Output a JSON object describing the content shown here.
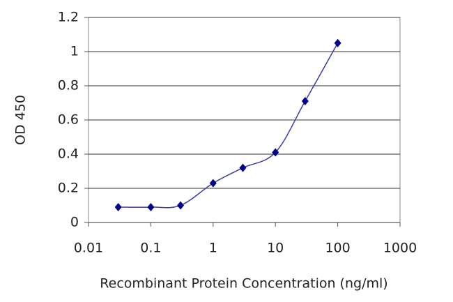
{
  "chart_data": {
    "type": "line",
    "x_label": "Recombinant Protein Concentration (ng/ml)",
    "y_label": "OD 450",
    "x": [
      0.03,
      0.1,
      0.3,
      1,
      3,
      10,
      30,
      100
    ],
    "series": [
      {
        "color": "#00008b",
        "values": [
          0.09,
          0.09,
          0.1,
          0.23,
          0.32,
          0.41,
          0.71,
          1.05
        ]
      }
    ],
    "x_log": true,
    "xlim": [
      0.01,
      1000
    ],
    "xticks": [
      0.01,
      0.1,
      1,
      10,
      100,
      1000
    ],
    "ylim": [
      0,
      1.2
    ],
    "yticks": [
      0,
      0.2,
      0.4,
      0.6,
      0.8,
      1,
      1.2
    ],
    "grid": true
  }
}
